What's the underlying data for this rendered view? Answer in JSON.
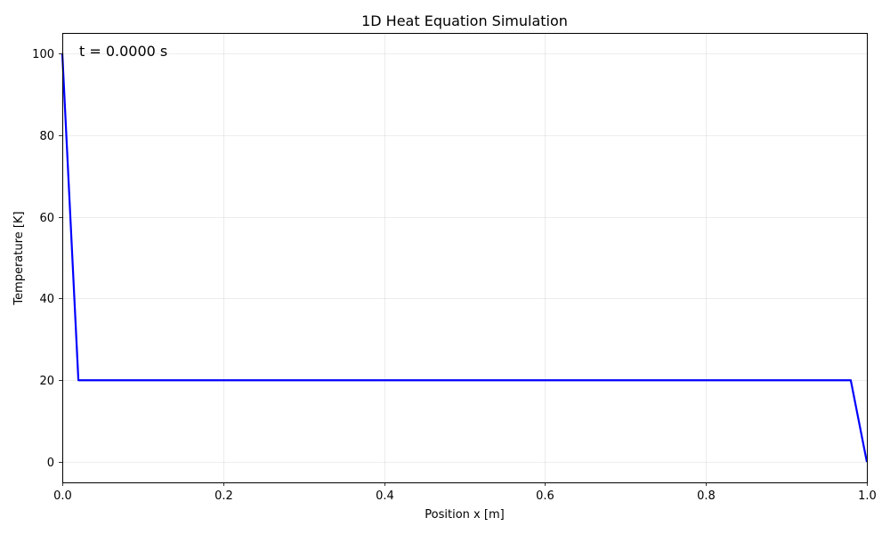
{
  "chart_data": {
    "type": "line",
    "title": "1D Heat Equation Simulation",
    "xlabel": "Position x [m]",
    "ylabel": "Temperature [K]",
    "xlim": [
      0.0,
      1.0
    ],
    "ylim": [
      -5,
      105
    ],
    "xticks": [
      0.0,
      0.2,
      0.4,
      0.6,
      0.8,
      1.0
    ],
    "xtick_labels": [
      "0.0",
      "0.2",
      "0.4",
      "0.6",
      "0.8",
      "1.0"
    ],
    "yticks": [
      0,
      20,
      40,
      60,
      80,
      100
    ],
    "ytick_labels": [
      "0",
      "20",
      "40",
      "60",
      "80",
      "100"
    ],
    "grid": true,
    "annotation": "t = 0.0000 s",
    "series": [
      {
        "color": "#0000ff",
        "x": [
          0.0,
          0.02,
          0.98,
          1.0
        ],
        "y": [
          100,
          20,
          20,
          0
        ]
      }
    ]
  }
}
